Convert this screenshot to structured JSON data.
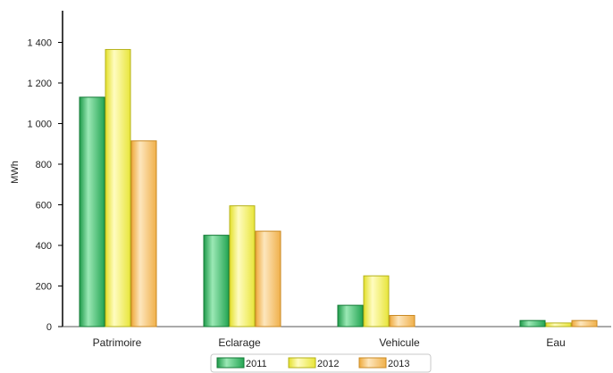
{
  "chart_data": {
    "type": "bar",
    "ylabel": "MWh",
    "xlabel": "",
    "ylim": [
      0,
      1600
    ],
    "yticks": [
      0,
      200,
      400,
      600,
      800,
      1000,
      1200,
      1400
    ],
    "ytick_labels": [
      "0",
      "200",
      "400",
      "600",
      "800",
      "1 000",
      "1 200",
      "1 400"
    ],
    "categories": [
      "Patrimoire",
      "Eclarage",
      "Vehicule",
      "Eau"
    ],
    "series": [
      {
        "name": "2011",
        "values": [
          1130,
          450,
          105,
          30
        ],
        "color": "#2fb35e"
      },
      {
        "name": "2012",
        "values": [
          1365,
          595,
          250,
          18
        ],
        "color": "#e8e63a"
      },
      {
        "name": "2013",
        "values": [
          915,
          470,
          55,
          30
        ],
        "color": "#f1b747"
      }
    ],
    "grid": false,
    "legend_position": "bottom-center"
  }
}
